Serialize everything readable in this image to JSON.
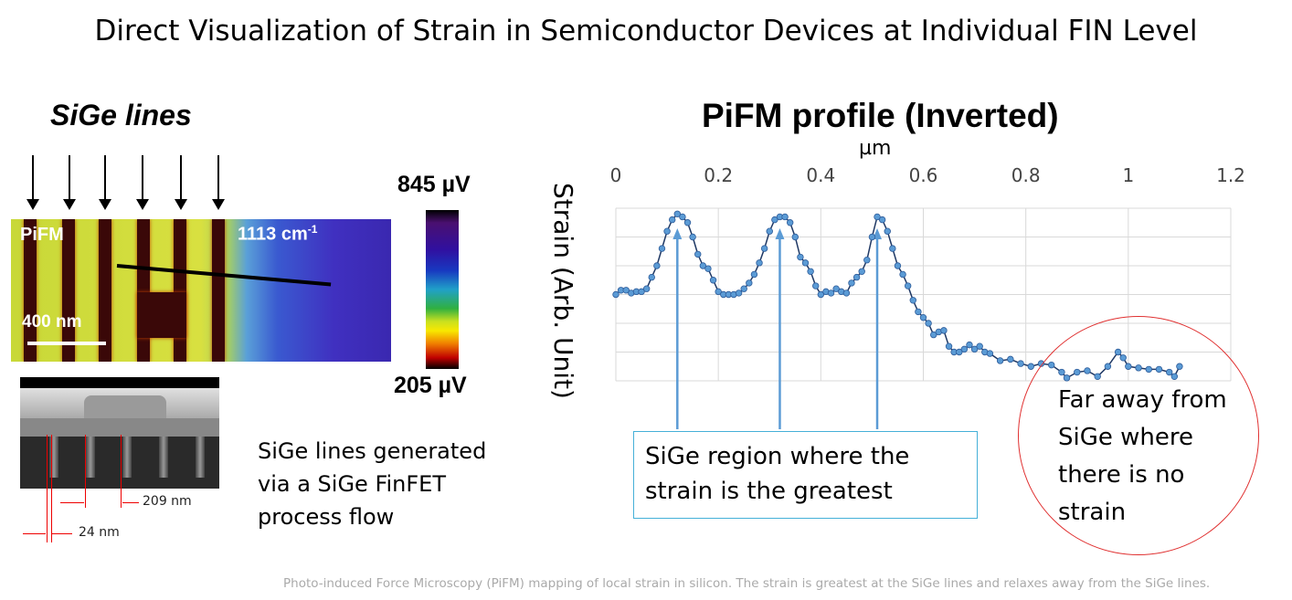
{
  "title": "Direct Visualization of Strain in Semiconductor Devices at Individual FIN Level",
  "left": {
    "heading": "SiGe lines",
    "image_label": "PiFM",
    "wavenumber": "1113 cm",
    "wavenumber_exp": "-1",
    "scale_bar": "400 nm",
    "colorbar_max": "845 µV",
    "colorbar_min": "205 µV",
    "sem_dim1": "209 nm",
    "sem_dim2": "24 nm",
    "note": "SiGe lines generated via a SiGe FinFET process flow"
  },
  "callouts": {
    "greatest": "SiGe region where the strain is the greatest",
    "no_strain": "Far away from SiGe where there is no strain"
  },
  "caption": "Photo-induced Force Microscopy (PiFM) mapping of local strain in silicon. The strain is greatest at the SiGe lines and relaxes away from the SiGe lines.",
  "colors": {
    "series": "#1f3864",
    "marker": "#5b9bd5",
    "arrow": "#5b9bd5",
    "circle": "#e03030",
    "callout_border": "#45b0d8"
  },
  "chart_data": {
    "type": "line",
    "title": "PiFM profile (Inverted)",
    "xlabel": "µm",
    "ylabel": "Strain (Arb. Unit)",
    "xlim": [
      0,
      1.2
    ],
    "ylim": [
      0,
      6
    ],
    "xticks": [
      "0",
      "0.2",
      "0.4",
      "0.6",
      "0.8",
      "1",
      "1.2"
    ],
    "grid": true,
    "peaks_x": [
      0.12,
      0.32,
      0.51
    ],
    "series": [
      {
        "name": "PiFM profile",
        "x": [
          0,
          0.01,
          0.02,
          0.03,
          0.04,
          0.05,
          0.06,
          0.07,
          0.08,
          0.09,
          0.1,
          0.11,
          0.12,
          0.13,
          0.14,
          0.15,
          0.16,
          0.17,
          0.18,
          0.19,
          0.2,
          0.21,
          0.22,
          0.23,
          0.24,
          0.25,
          0.26,
          0.27,
          0.28,
          0.29,
          0.3,
          0.31,
          0.32,
          0.33,
          0.34,
          0.35,
          0.36,
          0.37,
          0.38,
          0.39,
          0.4,
          0.41,
          0.42,
          0.43,
          0.44,
          0.45,
          0.46,
          0.47,
          0.48,
          0.49,
          0.5,
          0.51,
          0.52,
          0.53,
          0.54,
          0.55,
          0.56,
          0.57,
          0.58,
          0.59,
          0.6,
          0.61,
          0.62,
          0.63,
          0.64,
          0.65,
          0.66,
          0.67,
          0.68,
          0.69,
          0.7,
          0.71,
          0.72,
          0.73,
          0.75,
          0.77,
          0.79,
          0.81,
          0.83,
          0.85,
          0.87,
          0.88,
          0.9,
          0.92,
          0.94,
          0.96,
          0.98,
          0.99,
          1.0,
          1.02,
          1.04,
          1.06,
          1.08,
          1.09,
          1.1
        ],
        "y": [
          3.0,
          3.15,
          3.15,
          3.05,
          3.1,
          3.1,
          3.2,
          3.6,
          4.0,
          4.6,
          5.2,
          5.6,
          5.8,
          5.7,
          5.5,
          5.0,
          4.4,
          4.0,
          3.9,
          3.5,
          3.1,
          3.0,
          3.0,
          3.0,
          3.05,
          3.2,
          3.4,
          3.7,
          4.1,
          4.6,
          5.2,
          5.6,
          5.7,
          5.7,
          5.5,
          5.0,
          4.3,
          4.1,
          3.8,
          3.3,
          3.0,
          3.1,
          3.05,
          3.2,
          3.1,
          3.05,
          3.4,
          3.6,
          3.8,
          4.2,
          5.0,
          5.7,
          5.6,
          5.2,
          4.6,
          4.0,
          3.7,
          3.3,
          2.8,
          2.4,
          2.2,
          2.0,
          1.6,
          1.7,
          1.75,
          1.2,
          1.0,
          1.0,
          1.1,
          1.25,
          1.1,
          1.2,
          1.0,
          0.95,
          0.7,
          0.75,
          0.6,
          0.5,
          0.6,
          0.55,
          0.3,
          0.1,
          0.3,
          0.35,
          0.15,
          0.5,
          1.0,
          0.8,
          0.5,
          0.45,
          0.4,
          0.4,
          0.3,
          0.15,
          0.5
        ]
      }
    ]
  }
}
